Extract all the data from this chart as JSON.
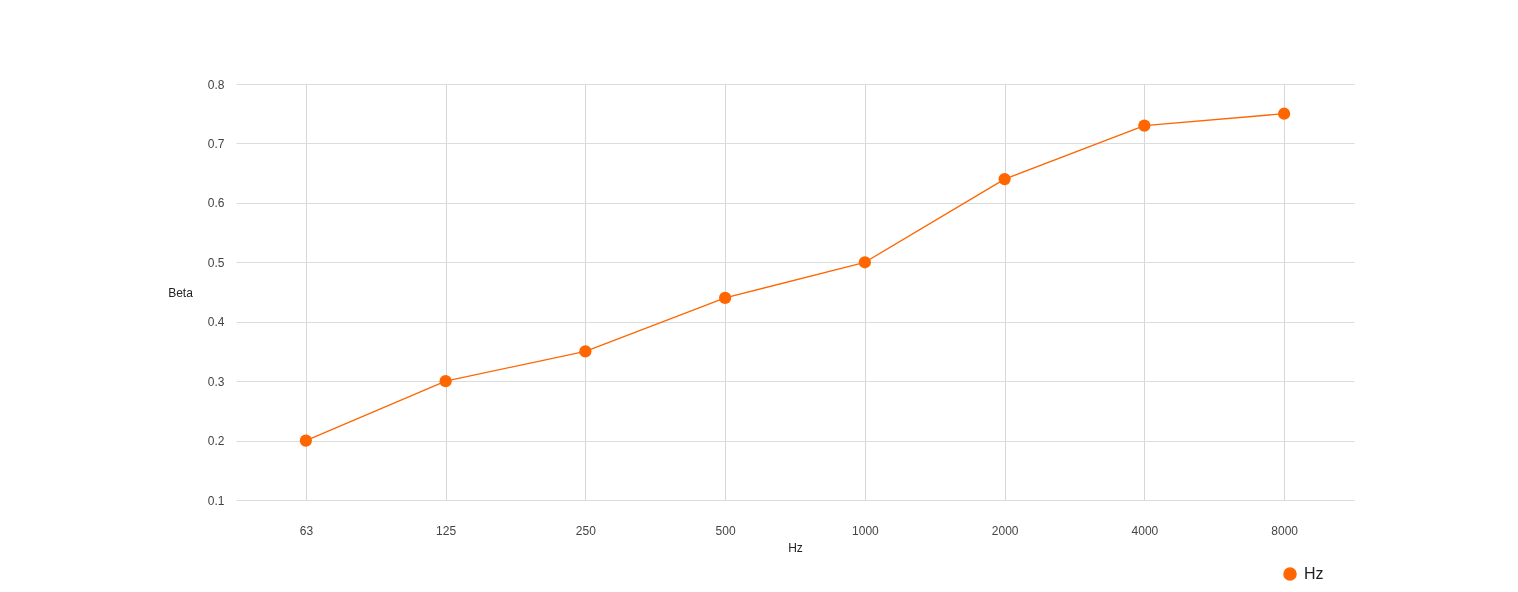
{
  "chart_data": {
    "type": "line",
    "categories": [
      "63",
      "125",
      "250",
      "500",
      "1000",
      "2000",
      "4000",
      "8000"
    ],
    "series": [
      {
        "name": "Hz",
        "color": "#ff6600",
        "values": [
          0.2,
          0.3,
          0.35,
          0.44,
          0.5,
          0.64,
          0.73,
          0.75
        ]
      }
    ],
    "xlabel": "Hz",
    "ylabel": "Beta",
    "ylim": [
      0.1,
      0.8
    ],
    "yticks": [
      0.1,
      0.2,
      0.3,
      0.4,
      0.5,
      0.6,
      0.7,
      0.8
    ],
    "grid": true,
    "legend": "bottom right",
    "marker": "circle",
    "line_style": "solid"
  }
}
